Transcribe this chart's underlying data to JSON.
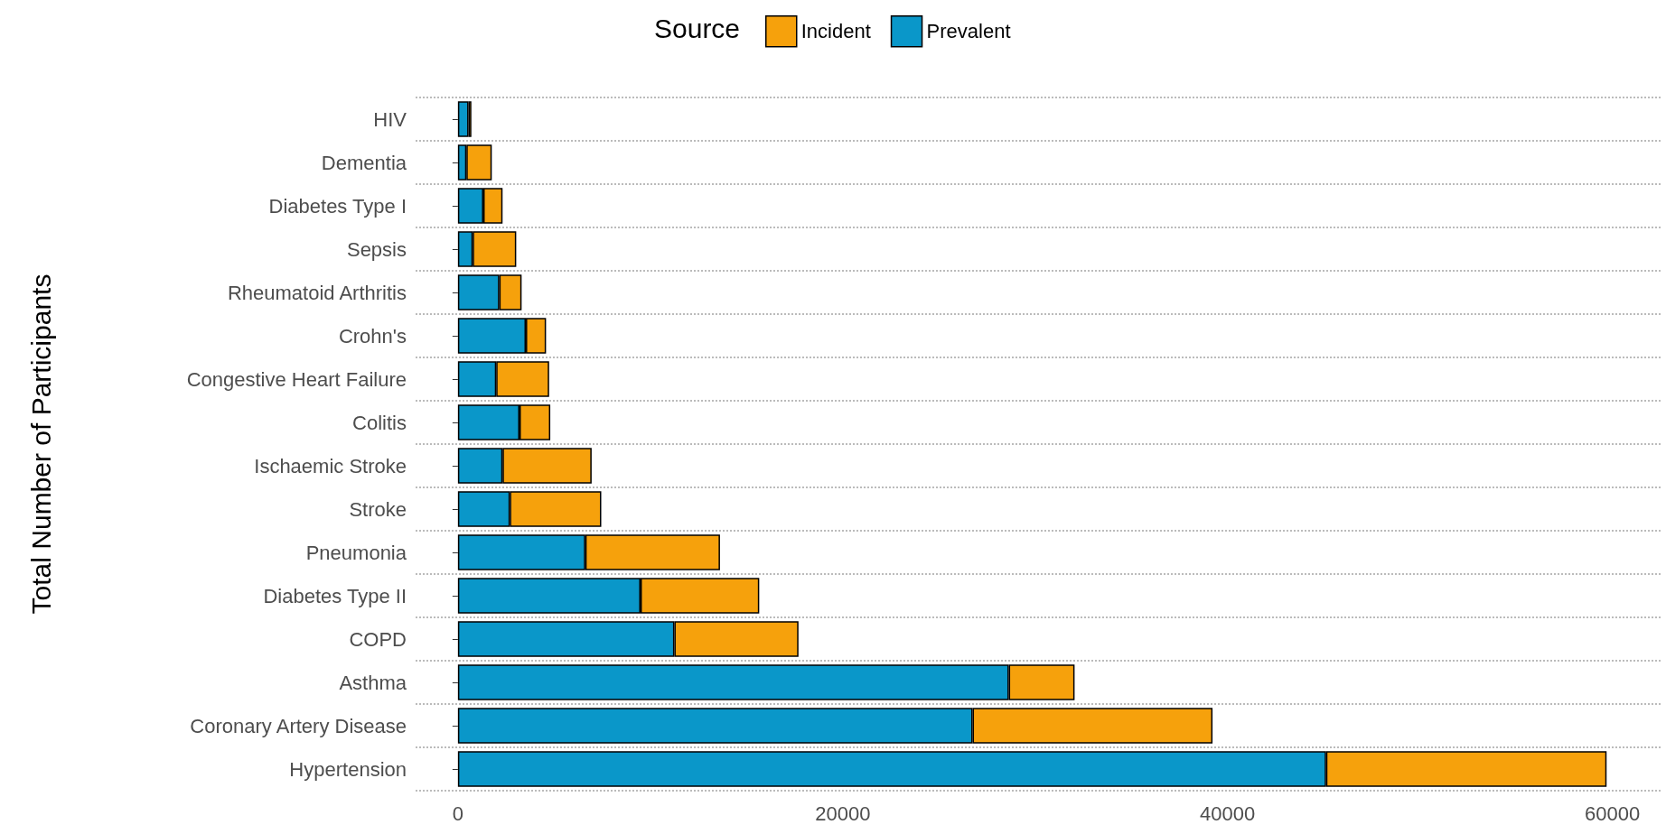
{
  "chart_data": {
    "type": "bar",
    "orientation": "horizontal",
    "stacked": true,
    "ylabel": "Total Number of Participants",
    "legend_title": "Source",
    "legend": "top",
    "categories": [
      "HIV",
      "Dementia",
      "Diabetes Type I",
      "Sepsis",
      "Rheumatoid Arthritis",
      "Crohn's",
      "Congestive Heart Failure",
      "Colitis",
      "Ischaemic Stroke",
      "Stroke",
      "Pneumonia",
      "Diabetes Type II",
      "COPD",
      "Asthma",
      "Coronary Artery Disease",
      "Hypertension"
    ],
    "series": [
      {
        "name": "Prevalent",
        "color": "#0a97c9",
        "values": [
          550,
          440,
          1320,
          770,
          2150,
          3530,
          1990,
          3200,
          2320,
          2700,
          6620,
          9490,
          11250,
          28630,
          26750,
          45120
        ]
      },
      {
        "name": "Incident",
        "color": "#f6a10c",
        "values": [
          150,
          1320,
          1000,
          2260,
          1160,
          1050,
          2750,
          1600,
          4630,
          4750,
          7000,
          6170,
          6450,
          3420,
          12470,
          14580
        ]
      }
    ],
    "xlim": [
      -2200,
      62600
    ],
    "xticks": [
      0,
      20000,
      40000,
      60000
    ],
    "grid": "y"
  }
}
